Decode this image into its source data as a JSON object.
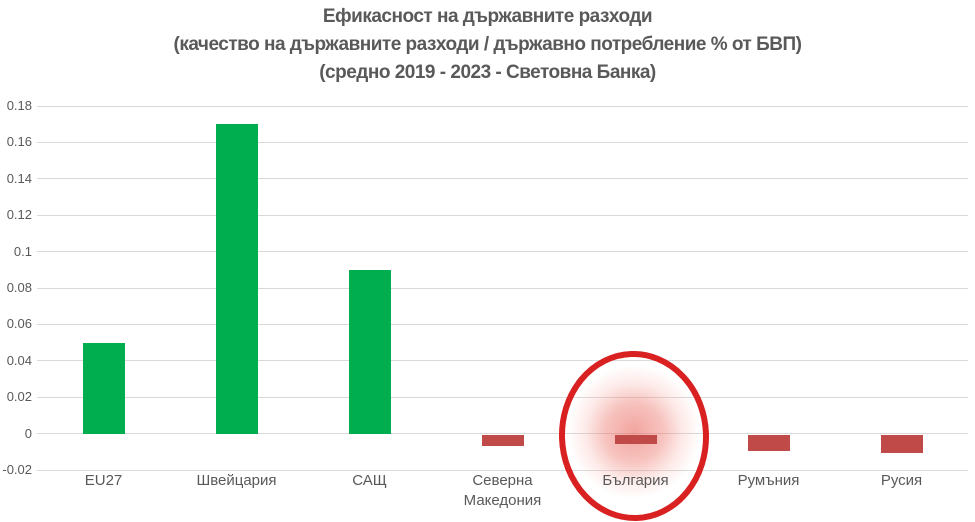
{
  "title": {
    "line1": "Ефикасност на държавните разходи",
    "line2": "(качество на държавните разходи / държавно потребление % от БВП)",
    "line3": "(средно 2019 - 2023 - Световна Банка)"
  },
  "chart_data": {
    "type": "bar",
    "title": "Ефикасност на държавните разходи",
    "subtitle": "(качество на държавните разходи / държавно потребление % от БВП)",
    "caption": "(средно 2019 - 2023 - Световна Банка)",
    "categories": [
      "EU27",
      "Швейцария",
      "САЩ",
      "Северна Македония",
      "България",
      "Румъния",
      "Русия"
    ],
    "values": [
      0.05,
      0.17,
      0.09,
      -0.006,
      -0.005,
      -0.009,
      -0.01
    ],
    "xlabel": "",
    "ylabel": "",
    "ylim": [
      -0.02,
      0.18
    ],
    "ytick_step": 0.02,
    "ytick_labels": [
      "0.18",
      "0.16",
      "0.14",
      "0.12",
      "0.1",
      "0.08",
      "0.06",
      "0.04",
      "0.02",
      "0",
      "-0.02"
    ],
    "grid": true,
    "legend": false,
    "positive_color": "#00AE50",
    "negative_color": "#C04A47",
    "highlight": {
      "category": "България",
      "index": 4,
      "circle_color": "#D92121",
      "glow_color": "#E85A50"
    }
  },
  "colors": {
    "text": "#595959",
    "gridline": "#D9D9D9",
    "background": "#FFFFFF"
  }
}
